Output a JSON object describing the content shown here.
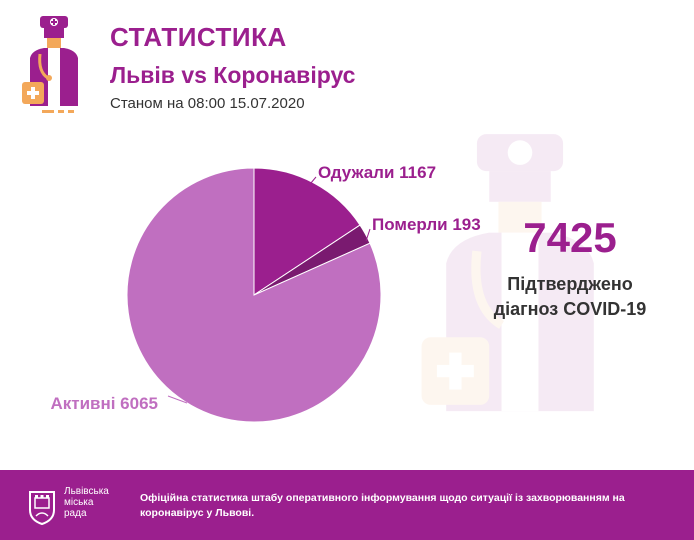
{
  "header": {
    "title": "СТАТИСТИКА",
    "subtitle": "Львів vs Коронавірус",
    "date_line": "Станом на 08:00 15.07.2020"
  },
  "total": {
    "value": "7425",
    "caption_line1": "Підтверджено",
    "caption_line2": "діагноз COVID-19"
  },
  "chart_data": {
    "type": "pie",
    "slices": [
      {
        "label": "Одужали 1167",
        "name": "Одужали",
        "value": 1167,
        "color": "#9b1f8e"
      },
      {
        "label": "Померли 193",
        "name": "Померли",
        "value": 193,
        "color": "#7a1a70"
      },
      {
        "label": "Активні 6065",
        "name": "Активні",
        "value": 6065,
        "color": "#c06fc0"
      }
    ],
    "label_colors": {
      "Одужали": "#9b1f8e",
      "Померли": "#9b1f8e",
      "Активні": "#c06fc0"
    }
  },
  "footer": {
    "org_line1": "Львівська",
    "org_line2": "міська",
    "org_line3": "рада",
    "text": "Офіційна статистика штабу оперативного інформування щодо ситуації із захворюванням на коронавірус у Львові."
  },
  "icons": {
    "header": "doctor-icon",
    "watermark": "doctor-icon",
    "footer": "city-coat-of-arms-icon"
  }
}
